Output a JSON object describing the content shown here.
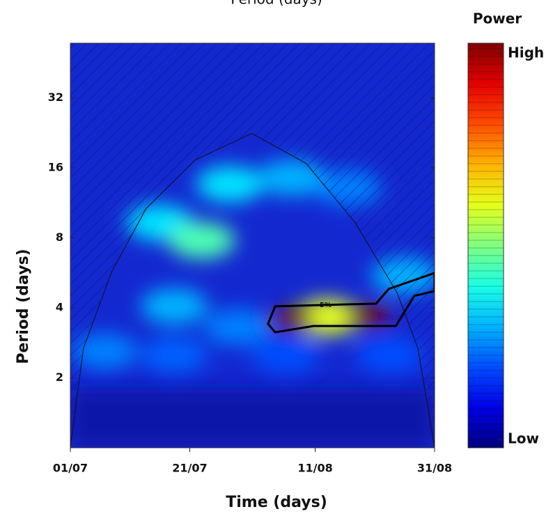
{
  "chart_data": {
    "type": "wavelet",
    "title": "Period (days)",
    "xlabel": "Time (days)",
    "ylabel": "Period (days)",
    "xlim": [
      0,
      61
    ],
    "xticks": [
      {
        "value": 0,
        "label": "01/07"
      },
      {
        "value": 20,
        "label": "21/07"
      },
      {
        "value": 41,
        "label": "11/08"
      },
      {
        "value": 61,
        "label": "31/08"
      }
    ],
    "ylim": [
      1,
      55
    ],
    "yticks": [
      2,
      4,
      8,
      16,
      32
    ],
    "yscale": "log",
    "colorbar": {
      "label": "Power",
      "lim": [
        0,
        1
      ],
      "ticks": [
        {
          "value": 0,
          "label": "Low"
        },
        {
          "value": 1,
          "label": "High"
        }
      ]
    },
    "hotspots": {
      "x": [
        37.2,
        50,
        43,
        22,
        15,
        26.7,
        37,
        46.5,
        17.4,
        5.7,
        17.4,
        28,
        36,
        53.5,
        56
      ],
      "y": [
        3.6,
        3.7,
        3.65,
        7.8,
        9.3,
        13.6,
        14.5,
        13.1,
        4.06,
        2.6,
        2.5,
        3.3,
        2.5,
        2.5,
        5.5
      ],
      "power": [
        1,
        1,
        0.6,
        0.45,
        0.35,
        0.35,
        0.3,
        0.25,
        0.3,
        0.25,
        0.22,
        0.25,
        0.2,
        0.2,
        0.3
      ]
    },
    "significance_contour": {
      "label": "5%",
      "x": [
        33.1,
        34.3,
        51.2,
        53.3,
        61,
        61,
        57.6,
        54.5,
        40.7,
        34.3
      ],
      "y": [
        3.41,
        4.06,
        4.17,
        4.82,
        5.65,
        4.72,
        4.5,
        3.34,
        3.34,
        3.14
      ]
    },
    "cone_of_influence": {
      "x": [
        0,
        2.2,
        6.9,
        12.7,
        20.9,
        30.4,
        39.5,
        47.7,
        54.7,
        58.2,
        61
      ],
      "y": [
        1,
        2.68,
        5.7,
        10.7,
        17.3,
        22.5,
        16.7,
        9.3,
        4.65,
        2.68,
        1
      ]
    }
  }
}
